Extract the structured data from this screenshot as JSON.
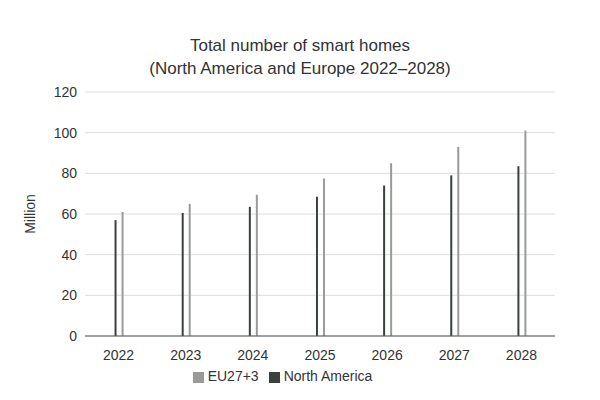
{
  "chart_data": {
    "type": "bar",
    "title": "Total number of smart homes",
    "subtitle": "(North America and Europe 2022–2028)",
    "y_label": "Million",
    "categories": [
      "2022",
      "2023",
      "2024",
      "2025",
      "2026",
      "2027",
      "2028"
    ],
    "series": [
      {
        "name": "North America",
        "color": "#3a403c",
        "values": [
          57,
          60.5,
          63.5,
          68.5,
          74,
          79,
          83.5
        ]
      },
      {
        "name": "EU27+3",
        "color": "#9a9b98",
        "values": [
          61,
          65,
          69.5,
          77.5,
          85,
          93,
          101
        ]
      }
    ],
    "ylim": [
      0,
      120
    ],
    "yticks": [
      0,
      20,
      40,
      60,
      80,
      100,
      120
    ],
    "grid": true,
    "legend": "bottom"
  }
}
